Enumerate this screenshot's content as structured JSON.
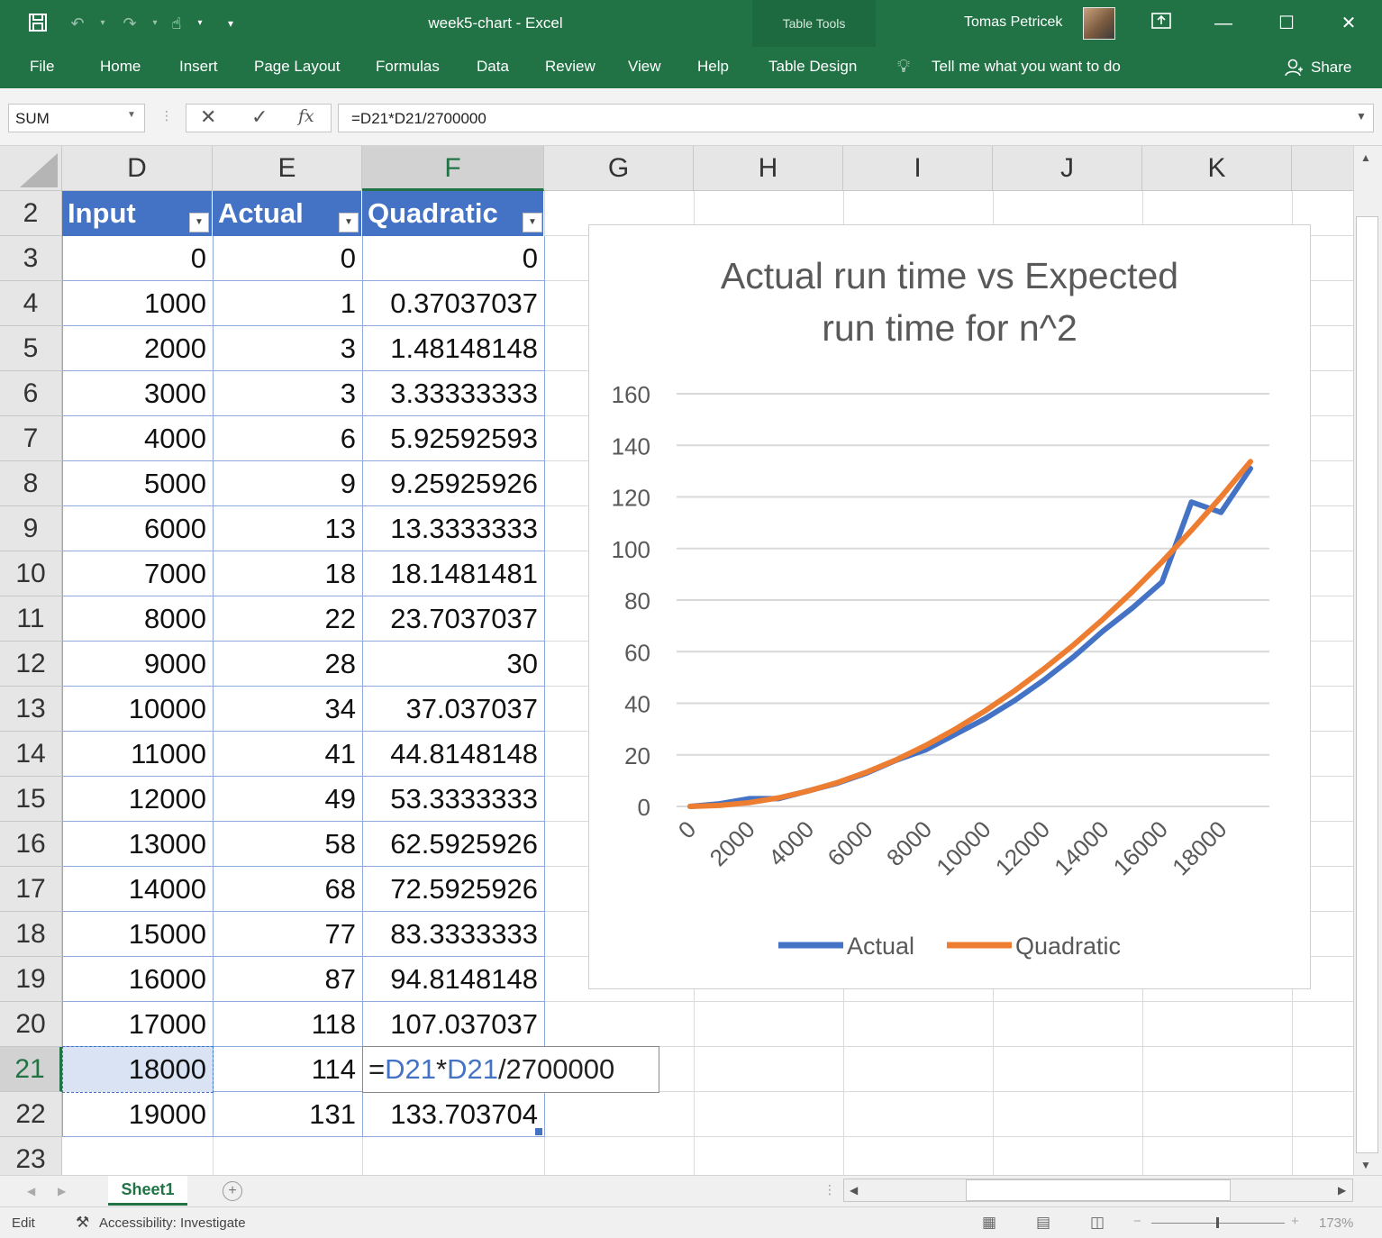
{
  "titlebar": {
    "title": "week5-chart  -  Excel",
    "table_tools": "Table Tools",
    "user_name": "Tomas Petricek"
  },
  "ribbon": {
    "tabs": [
      "File",
      "Home",
      "Insert",
      "Page Layout",
      "Formulas",
      "Data",
      "Review",
      "View",
      "Help",
      "Table Design"
    ],
    "active_tab": "Table Design",
    "tell_me": "Tell me what you want to do",
    "share": "Share"
  },
  "formula_bar": {
    "name_box": "SUM",
    "formula": "=D21*D21/2700000"
  },
  "grid": {
    "columns": [
      "D",
      "E",
      "F",
      "G",
      "H",
      "I",
      "J",
      "K"
    ],
    "selected_column": "F",
    "rows": [
      "2",
      "3",
      "4",
      "5",
      "6",
      "7",
      "8",
      "9",
      "10",
      "11",
      "12",
      "13",
      "14",
      "15",
      "16",
      "17",
      "18",
      "19",
      "20",
      "21",
      "22",
      "23"
    ],
    "selected_row": "21",
    "table_headers": [
      "Input",
      "Actual",
      "Quadratic"
    ],
    "table_rows": [
      [
        "0",
        "0",
        "0"
      ],
      [
        "1000",
        "1",
        "0.37037037"
      ],
      [
        "2000",
        "3",
        "1.48148148"
      ],
      [
        "3000",
        "3",
        "3.33333333"
      ],
      [
        "4000",
        "6",
        "5.92592593"
      ],
      [
        "5000",
        "9",
        "9.25925926"
      ],
      [
        "6000",
        "13",
        "13.3333333"
      ],
      [
        "7000",
        "18",
        "18.1481481"
      ],
      [
        "8000",
        "22",
        "23.7037037"
      ],
      [
        "9000",
        "28",
        "30"
      ],
      [
        "10000",
        "34",
        "37.037037"
      ],
      [
        "11000",
        "41",
        "44.8148148"
      ],
      [
        "12000",
        "49",
        "53.3333333"
      ],
      [
        "13000",
        "58",
        "62.5925926"
      ],
      [
        "14000",
        "68",
        "72.5925926"
      ],
      [
        "15000",
        "77",
        "83.3333333"
      ],
      [
        "16000",
        "87",
        "94.8148148"
      ],
      [
        "17000",
        "118",
        "107.037037"
      ],
      [
        "18000",
        "114",
        ""
      ],
      [
        "19000",
        "131",
        "133.703704"
      ]
    ],
    "edit_formula_parts": [
      "=",
      "D21",
      "*",
      "D21",
      "/2700000"
    ]
  },
  "chart_data": {
    "type": "line",
    "title_lines": [
      "Actual run time vs Expected",
      "run time for n^2"
    ],
    "x": [
      0,
      1000,
      2000,
      3000,
      4000,
      5000,
      6000,
      7000,
      8000,
      9000,
      10000,
      11000,
      12000,
      13000,
      14000,
      15000,
      16000,
      17000,
      18000,
      19000
    ],
    "x_tick_labels": [
      "0",
      "2000",
      "4000",
      "6000",
      "8000",
      "10000",
      "12000",
      "14000",
      "16000",
      "18000"
    ],
    "y_tick_labels": [
      "0",
      "20",
      "40",
      "60",
      "80",
      "100",
      "120",
      "140",
      "160"
    ],
    "ylim": [
      0,
      160
    ],
    "grid": true,
    "legend_position": "bottom",
    "series": [
      {
        "name": "Actual",
        "color": "#4472c4",
        "values": [
          0,
          1,
          3,
          3,
          6,
          9,
          13,
          18,
          22,
          28,
          34,
          41,
          49,
          58,
          68,
          77,
          87,
          118,
          114,
          131
        ]
      },
      {
        "name": "Quadratic",
        "color": "#ed7d31",
        "values": [
          0,
          0.37037037,
          1.48148148,
          3.33333333,
          5.92592593,
          9.25925926,
          13.3333333,
          18.1481481,
          23.7037037,
          30,
          37.037037,
          44.8148148,
          53.3333333,
          62.5925926,
          72.5925926,
          83.3333333,
          94.8148148,
          107.037037,
          120,
          133.703704
        ]
      }
    ]
  },
  "sheets": {
    "tabs": [
      "Sheet1"
    ],
    "active": "Sheet1"
  },
  "statusbar": {
    "mode": "Edit",
    "accessibility": "Accessibility: Investigate",
    "zoom": "173%"
  }
}
